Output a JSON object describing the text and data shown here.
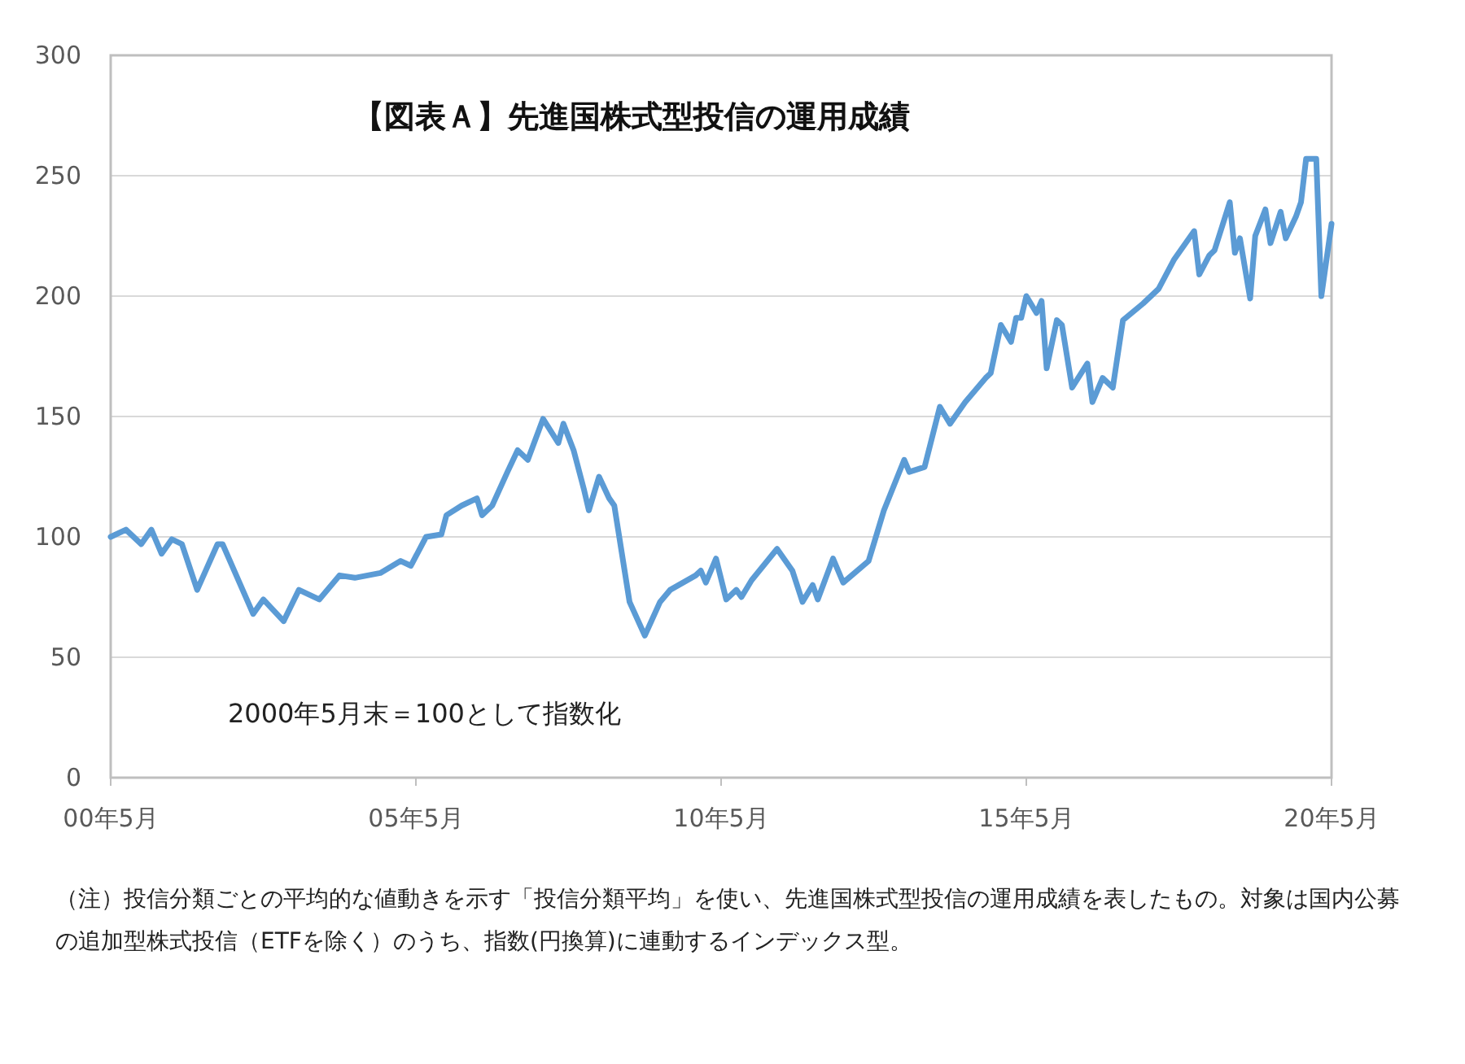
{
  "chart_data": {
    "type": "line",
    "title": "【図表Ａ】先進国株式型投信の運用成績",
    "x": [
      "2000-05",
      "2000-08",
      "2000-11",
      "2001-01",
      "2001-03",
      "2001-05",
      "2001-07",
      "2001-10",
      "2002-02",
      "2002-03",
      "2002-09",
      "2002-11",
      "2003-03",
      "2003-06",
      "2003-10",
      "2004-02",
      "2004-05",
      "2004-10",
      "2005-02",
      "2005-04",
      "2005-07",
      "2005-10",
      "2005-11",
      "2006-02",
      "2006-05",
      "2006-06",
      "2006-08",
      "2006-11",
      "2007-01",
      "2007-03",
      "2007-06",
      "2007-09",
      "2007-10",
      "2007-12",
      "2008-02",
      "2008-03",
      "2008-05",
      "2008-07",
      "2008-08",
      "2008-11",
      "2009-02",
      "2009-05",
      "2009-07",
      "2009-12",
      "2010-01",
      "2010-02",
      "2010-04",
      "2010-06",
      "2010-08",
      "2010-09",
      "2010-11",
      "2011-04",
      "2011-07",
      "2011-09",
      "2011-11",
      "2011-12",
      "2012-03",
      "2012-05",
      "2012-10",
      "2012-11",
      "2013-01",
      "2013-05",
      "2013-06",
      "2013-09",
      "2013-12",
      "2014-02",
      "2014-05",
      "2014-09",
      "2014-10",
      "2014-12",
      "2015-02",
      "2015-03",
      "2015-04",
      "2015-05",
      "2015-07",
      "2015-08",
      "2015-09",
      "2015-11",
      "2015-12",
      "2016-02",
      "2016-05",
      "2016-06",
      "2016-08",
      "2016-10",
      "2016-12",
      "2017-04",
      "2017-07",
      "2017-10",
      "2018-02",
      "2018-03",
      "2018-05",
      "2018-06",
      "2018-09",
      "2018-10",
      "2018-11",
      "2019-01",
      "2019-02",
      "2019-04",
      "2019-05",
      "2019-07",
      "2019-08",
      "2019-10",
      "2019-11",
      "2019-12",
      "2020-02",
      "2020-03",
      "2020-05"
    ],
    "series": [
      {
        "color": "#5b9bd5",
        "values": [
          100,
          103,
          97,
          103,
          93,
          99,
          97,
          78,
          97,
          97,
          68,
          74,
          65,
          78,
          74,
          84,
          83,
          85,
          90,
          88,
          100,
          101,
          109,
          113,
          116,
          109,
          113,
          127,
          136,
          132,
          149,
          139,
          147,
          136,
          120,
          111,
          125,
          116,
          113,
          73,
          59,
          73,
          78,
          84,
          86,
          81,
          91,
          74,
          78,
          75,
          82,
          95,
          86,
          73,
          80,
          74,
          91,
          81,
          90,
          97,
          111,
          132,
          127,
          129,
          154,
          147,
          156,
          166,
          168,
          188,
          181,
          191,
          191,
          200,
          193,
          198,
          170,
          190,
          188,
          162,
          172,
          156,
          166,
          162,
          190,
          197,
          203,
          215,
          227,
          209,
          217,
          219,
          239,
          218,
          224,
          199,
          225,
          236,
          222,
          235,
          224,
          233,
          239,
          257,
          257,
          200,
          230
        ]
      }
    ],
    "xlim": [
      "2000-05",
      "2020-05"
    ],
    "xticks": [
      {
        "value": "2000-05",
        "label": "00年5月"
      },
      {
        "value": "2005-05",
        "label": "05年5月"
      },
      {
        "value": "2010-05",
        "label": "10年5月"
      },
      {
        "value": "2015-05",
        "label": "15年5月"
      },
      {
        "value": "2020-05",
        "label": "20年5月"
      }
    ],
    "ylim": [
      0,
      300
    ],
    "yticks": [
      0,
      50,
      100,
      150,
      200,
      250,
      300
    ],
    "grid": "y",
    "annotations": [
      "2000年5月末＝100として指数化",
      "（注）投信分類ごとの平均的な値動きを示す「投信分類平均」を使い、先進国株式型投信の運用成績を表したもの。対象は国内公募の追加型株式投信（ETFを除く）のうち、指数(円換算)に連動するインデックス型。"
    ]
  }
}
